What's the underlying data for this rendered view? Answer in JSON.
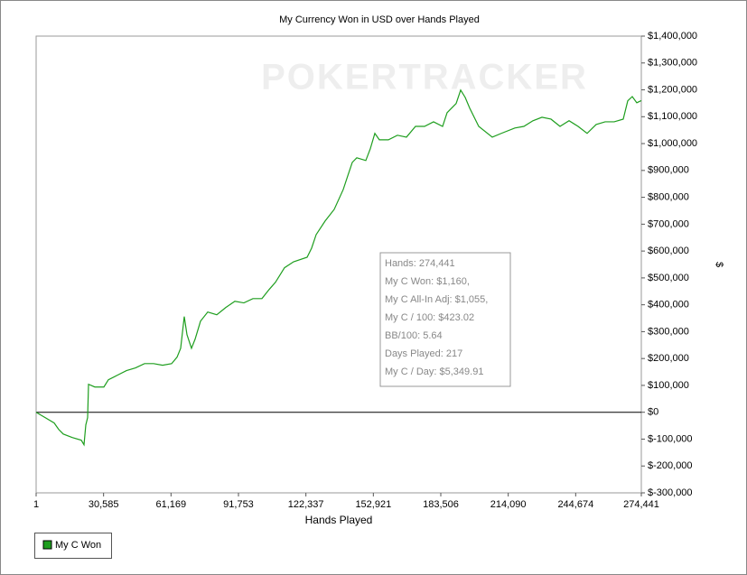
{
  "chart_data": {
    "type": "line",
    "title": "My Currency Won in USD over Hands Played",
    "xlabel": "Hands Played",
    "ylabel": "$",
    "watermark": "POKERTRACKER",
    "annotations": [
      "Hands: 274,441",
      "My C Won: $1,160,",
      "My C All-In Adj: $1,055,",
      "My C / 100: $423.02",
      "BB/100: 5.64",
      "Days Played: 217",
      "My C / Day: $5,349.91"
    ],
    "legend": "bottom-left",
    "grid": false,
    "xlim": [
      1,
      274441
    ],
    "xticks": [
      1,
      {
        "value": 30585,
        "label": "30,585"
      },
      {
        "value": 61169,
        "label": "61,169"
      },
      {
        "value": 91753,
        "label": "91,753"
      },
      {
        "value": 122337,
        "label": "122,337"
      },
      {
        "value": 152921,
        "label": "152,921"
      },
      {
        "value": 183506,
        "label": "183,506"
      },
      {
        "value": 214090,
        "label": "214,090"
      },
      {
        "value": 244674,
        "label": "244,674"
      },
      {
        "value": 274441,
        "label": "274,441"
      }
    ],
    "ylim": [
      -300000,
      1400000
    ],
    "yticks": [
      {
        "value": -300000,
        "label": "$-300,000"
      },
      {
        "value": -200000,
        "label": "$-200,000"
      },
      {
        "value": -100000,
        "label": "$-100,000"
      },
      {
        "value": 0,
        "label": "$0"
      },
      {
        "value": 100000,
        "label": "$100,000"
      },
      {
        "value": 200000,
        "label": "$200,000"
      },
      {
        "value": 300000,
        "label": "$300,000"
      },
      {
        "value": 400000,
        "label": "$400,000"
      },
      {
        "value": 500000,
        "label": "$500,000"
      },
      {
        "value": 600000,
        "label": "$600,000"
      },
      {
        "value": 700000,
        "label": "$700,000"
      },
      {
        "value": 800000,
        "label": "$800,000"
      },
      {
        "value": 900000,
        "label": "$900,000"
      },
      {
        "value": 1000000,
        "label": "$1,000,000"
      },
      {
        "value": 1100000,
        "label": "$1,100,000"
      },
      {
        "value": 1200000,
        "label": "$1,200,000"
      },
      {
        "value": 1300000,
        "label": "$1,300,000"
      },
      {
        "value": 1400000,
        "label": "$1,400,000"
      }
    ],
    "x": [
      1,
      4096,
      8193,
      10241,
      12289,
      16385,
      20481,
      21709,
      22528,
      23348,
      23757,
      26625,
      30721,
      32769,
      36865,
      40961,
      45057,
      49153,
      53250,
      57346,
      61442,
      63900,
      65537,
      67175,
      68404,
      70452,
      72090,
      74548,
      77825,
      81921,
      86017,
      90113,
      94209,
      98305,
      102401,
      105678,
      108545,
      112641,
      116737,
      122882,
      124930,
      126978,
      131074,
      135170,
      139266,
      141314,
      143362,
      145410,
      149506,
      151554,
      153602,
      155650,
      159746,
      163842,
      167938,
      172034,
      176130,
      180226,
      184322,
      186370,
      190466,
      192514,
      194562,
      196610,
      200706,
      206850,
      210946,
      217090,
      221186,
      225282,
      229378,
      233474,
      237570,
      241666,
      245762,
      249858,
      253954,
      258050,
      262146,
      266242,
      268290,
      270338,
      272386,
      274441
    ],
    "series": [
      {
        "name": "My C Won",
        "color": "#1e9e1e",
        "values": [
          0,
          -20000,
          -40000,
          -64000,
          -81000,
          -94000,
          -104000,
          -121000,
          -47000,
          -20000,
          104000,
          94000,
          94000,
          121000,
          138000,
          155000,
          165000,
          181000,
          181000,
          175000,
          181000,
          205000,
          238000,
          356000,
          289000,
          238000,
          272000,
          339000,
          373000,
          363000,
          390000,
          413000,
          407000,
          423000,
          423000,
          457000,
          484000,
          538000,
          560000,
          577000,
          611000,
          661000,
          712000,
          755000,
          829000,
          880000,
          930000,
          947000,
          937000,
          981000,
          1038000,
          1014000,
          1014000,
          1031000,
          1024000,
          1064000,
          1064000,
          1081000,
          1064000,
          1115000,
          1149000,
          1199000,
          1172000,
          1132000,
          1064000,
          1024000,
          1038000,
          1058000,
          1064000,
          1085000,
          1098000,
          1091000,
          1064000,
          1085000,
          1064000,
          1038000,
          1071000,
          1081000,
          1081000,
          1091000,
          1159000,
          1175000,
          1152000,
          1160000
        ]
      }
    ]
  }
}
